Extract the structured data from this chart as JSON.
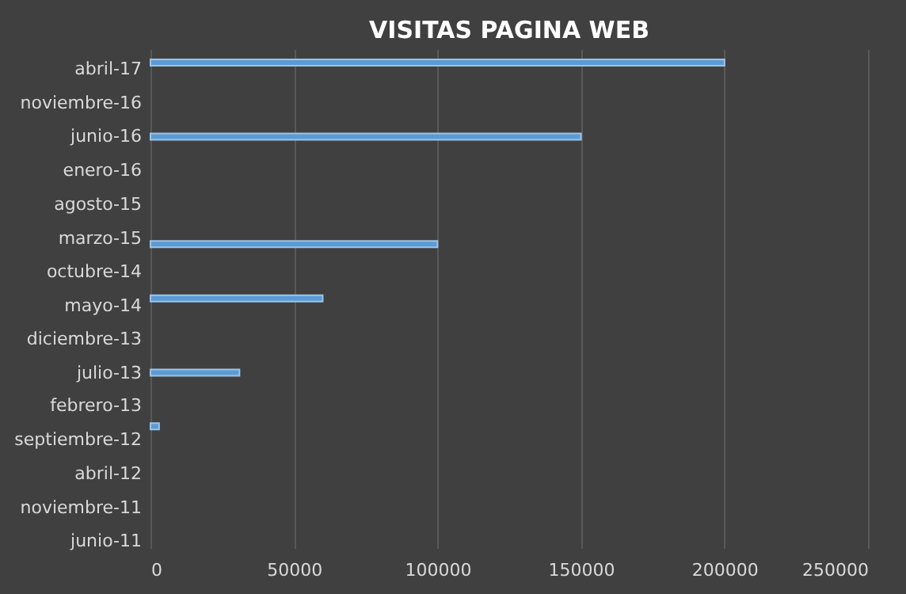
{
  "chart_data": {
    "type": "bar",
    "orientation": "horizontal",
    "title": "VISITAS PAGINA WEB",
    "x": [
      "2012-11-01",
      "2013-07-01",
      "2014-06-01",
      "2015-02-01",
      "2016-06-01",
      "2017-05-01"
    ],
    "values": [
      3000,
      31000,
      60000,
      100000,
      150000,
      200000
    ],
    "color": "#5b9bd5",
    "xlim": [
      0,
      250000
    ],
    "xticks": [
      0,
      50000,
      100000,
      150000,
      200000,
      250000
    ],
    "ylim": [
      "2011-05-01",
      "2017-07-01"
    ],
    "yticks": [
      {
        "value": "2011-06-01",
        "label": "junio-11"
      },
      {
        "value": "2011-11-01",
        "label": "noviembre-11"
      },
      {
        "value": "2012-04-01",
        "label": "abril-12"
      },
      {
        "value": "2012-09-01",
        "label": "septiembre-12"
      },
      {
        "value": "2013-02-01",
        "label": "febrero-13"
      },
      {
        "value": "2013-07-01",
        "label": "julio-13"
      },
      {
        "value": "2013-12-01",
        "label": "diciembre-13"
      },
      {
        "value": "2014-05-01",
        "label": "mayo-14"
      },
      {
        "value": "2014-10-01",
        "label": "octubre-14"
      },
      {
        "value": "2015-03-01",
        "label": "marzo-15"
      },
      {
        "value": "2015-08-01",
        "label": "agosto-15"
      },
      {
        "value": "2016-01-01",
        "label": "enero-16"
      },
      {
        "value": "2016-06-01",
        "label": "junio-16"
      },
      {
        "value": "2016-11-01",
        "label": "noviembre-16"
      },
      {
        "value": "2017-04-01",
        "label": "abril-17"
      }
    ],
    "grid": "x"
  }
}
